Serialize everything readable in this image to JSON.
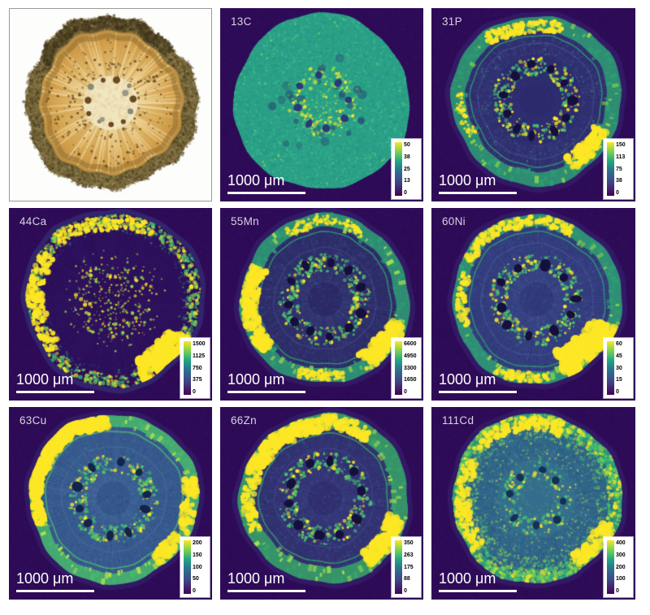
{
  "figure": {
    "description": "Optical image and elemental distribution maps of a stem cross-section",
    "scale_unit": "1000 μm"
  },
  "palette": {
    "map_background": "#2e0b57",
    "viridis": [
      "#440154",
      "#414487",
      "#2a788e",
      "#22a884",
      "#7ad151",
      "#fde725"
    ],
    "scale_text": "#ffffff",
    "label_text": "#d8d2e2",
    "colorbar_box": "#ffffff"
  },
  "panels": [
    {
      "id": "optical",
      "kind": "photo",
      "label": ""
    },
    {
      "id": "c13",
      "kind": "map",
      "label": "13C",
      "scale_label": "1000 μm",
      "colorbar": {
        "ticks": [
          "50",
          "38",
          "25",
          "13",
          "0"
        ]
      }
    },
    {
      "id": "p31",
      "kind": "map",
      "label": "31P",
      "scale_label": "1000 μm",
      "colorbar": {
        "ticks": [
          "150",
          "113",
          "75",
          "38",
          "0"
        ]
      }
    },
    {
      "id": "ca44",
      "kind": "map",
      "label": "44Ca",
      "scale_label": "1000 μm",
      "colorbar": {
        "ticks": [
          "1500",
          "1125",
          "750",
          "375",
          "0"
        ]
      }
    },
    {
      "id": "mn55",
      "kind": "map",
      "label": "55Mn",
      "scale_label": "1000 μm",
      "colorbar": {
        "ticks": [
          "6600",
          "4950",
          "3300",
          "1650",
          "0"
        ]
      }
    },
    {
      "id": "ni60",
      "kind": "map",
      "label": "60Ni",
      "scale_label": "1000 μm",
      "colorbar": {
        "ticks": [
          "60",
          "45",
          "30",
          "15",
          "0"
        ]
      }
    },
    {
      "id": "cu63",
      "kind": "map",
      "label": "63Cu",
      "scale_label": "1000 μm",
      "colorbar": {
        "ticks": [
          "200",
          "150",
          "100",
          "50",
          "0"
        ]
      }
    },
    {
      "id": "zn66",
      "kind": "map",
      "label": "66Zn",
      "scale_label": "1000 μm",
      "colorbar": {
        "ticks": [
          "350",
          "263",
          "175",
          "88",
          "0"
        ]
      }
    },
    {
      "id": "cd111",
      "kind": "map",
      "label": "111Cd",
      "scale_label": "1000 μm",
      "colorbar": {
        "ticks": [
          "400",
          "300",
          "200",
          "100",
          "0"
        ]
      }
    }
  ]
}
